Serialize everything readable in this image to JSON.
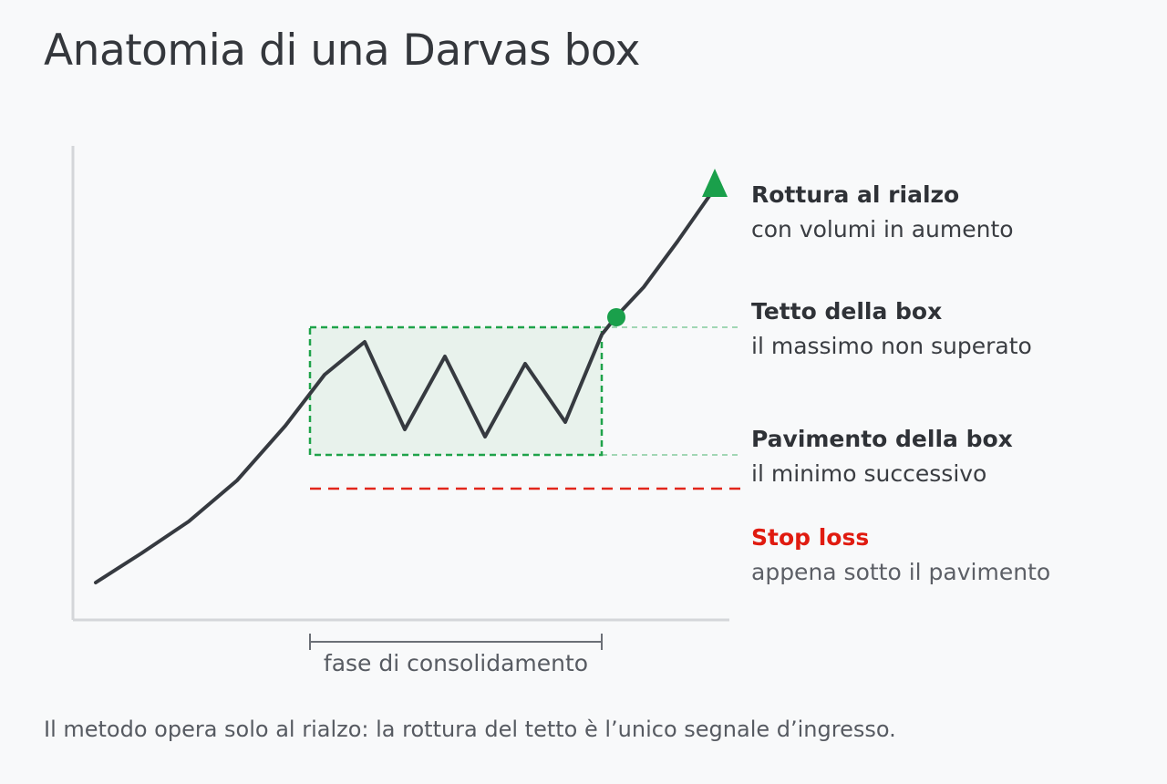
{
  "title": "Anatomia di una Darvas box",
  "legend": {
    "breakout": {
      "title": "Rottura al rialzo",
      "subtitle": "con volumi in aumento"
    },
    "roof": {
      "title": "Tetto della box",
      "subtitle": "il massimo non superato"
    },
    "floor": {
      "title": "Pavimento della box",
      "subtitle": "il minimo successivo"
    },
    "stop_loss": {
      "title": "Stop loss",
      "subtitle": "appena sotto il pavimento"
    }
  },
  "consolidation_label": "fase di consolidamento",
  "footnote": "Il metodo opera solo al rialzo: la rottura del tetto è l’unico segnale d’ingresso.",
  "colors": {
    "price_line": "#363a40",
    "box": "#1fa34a",
    "box_fill": "#e8f2ec",
    "stop_loss": "#e2261b",
    "axis": "#d4d6d9",
    "marker": "#1aa04b"
  }
}
